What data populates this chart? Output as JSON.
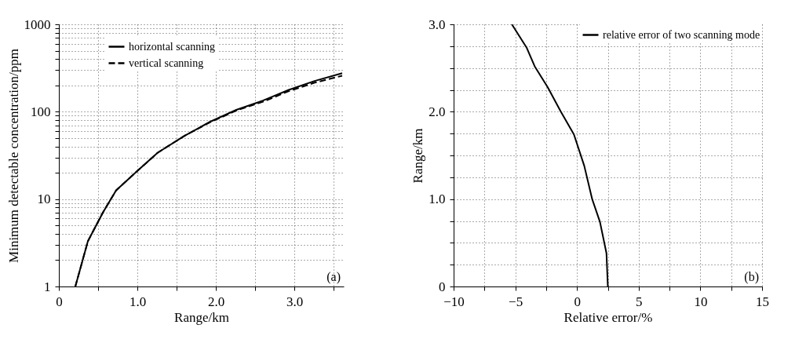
{
  "chart_data": [
    {
      "type": "line",
      "xlabel": "Range/km",
      "ylabel": "Minimum detectable concentration/ppm",
      "log": "y",
      "grid": true,
      "legend": "top left",
      "annotations": [
        "(a)"
      ],
      "xlim": [
        0,
        3.63
      ],
      "xticks": [
        0,
        {
          "value": 0.5,
          "label": null
        },
        {
          "value": 1,
          "label": "1.0"
        },
        {
          "value": 1.5,
          "label": null
        },
        {
          "value": 2,
          "label": "2.0"
        },
        {
          "value": 2.5,
          "label": null
        },
        {
          "value": 3,
          "label": "3.0"
        },
        {
          "value": 3.5,
          "label": null
        }
      ],
      "ylim": [
        1,
        1000
      ],
      "yticks": [
        1,
        {
          "value": 2,
          "label": null
        },
        {
          "value": 3,
          "label": null
        },
        {
          "value": 4,
          "label": null
        },
        {
          "value": 5,
          "label": null
        },
        {
          "value": 6,
          "label": null
        },
        {
          "value": 7,
          "label": null
        },
        {
          "value": 8,
          "label": null
        },
        {
          "value": 9,
          "label": null
        },
        10,
        {
          "value": 20,
          "label": null
        },
        {
          "value": 30,
          "label": null
        },
        {
          "value": 40,
          "label": null
        },
        {
          "value": 50,
          "label": null
        },
        {
          "value": 60,
          "label": null
        },
        {
          "value": 70,
          "label": null
        },
        {
          "value": 80,
          "label": null
        },
        {
          "value": 90,
          "label": null
        },
        100,
        {
          "value": 200,
          "label": null
        },
        {
          "value": 300,
          "label": null
        },
        {
          "value": 400,
          "label": null
        },
        {
          "value": 500,
          "label": null
        },
        {
          "value": 600,
          "label": null
        },
        {
          "value": 700,
          "label": null
        },
        {
          "value": 800,
          "label": null
        },
        {
          "value": 900,
          "label": null
        },
        1000
      ],
      "series": [
        {
          "name": "horizontal scanning",
          "color": "#000000",
          "line_style": "solid",
          "x": [
            0.21,
            0.37,
            0.56,
            0.73,
            1.0,
            1.26,
            1.6,
            1.93,
            2.26,
            2.6,
            2.93,
            3.26,
            3.61
          ],
          "values": [
            1,
            3.3,
            7,
            12.6,
            21,
            34,
            53,
            77,
            105,
            134,
            178,
            225,
            276
          ]
        },
        {
          "name": "vertical scanning",
          "color": "#000000",
          "line_style": "dashed",
          "x": [
            0.21,
            0.37,
            0.56,
            0.73,
            1.0,
            1.26,
            1.6,
            1.93,
            2.26,
            2.6,
            2.93,
            3.26,
            3.61
          ],
          "values": [
            1,
            3.3,
            7,
            12.6,
            21,
            34,
            53,
            76,
            103,
            130,
            172,
            215,
            258
          ]
        }
      ]
    },
    {
      "type": "line",
      "xlabel": "Relative error/%",
      "ylabel": "Range/km",
      "grid": true,
      "legend": "top right",
      "annotations": [
        "(b)"
      ],
      "xlim": [
        -10,
        15
      ],
      "xticks": [
        {
          "value": -10,
          "label": "−10"
        },
        {
          "value": -7.5,
          "label": null
        },
        {
          "value": -5,
          "label": "−5"
        },
        {
          "value": -2.5,
          "label": null
        },
        0,
        {
          "value": 2.5,
          "label": null
        },
        5,
        {
          "value": 7.5,
          "label": null
        },
        10,
        {
          "value": 12.5,
          "label": null
        },
        15
      ],
      "ylim": [
        0,
        3
      ],
      "yticks": [
        0,
        {
          "value": 0.25,
          "label": null
        },
        {
          "value": 0.5,
          "label": null
        },
        {
          "value": 0.75,
          "label": null
        },
        {
          "value": 1,
          "label": "1.0"
        },
        {
          "value": 1.25,
          "label": null
        },
        {
          "value": 1.5,
          "label": null
        },
        {
          "value": 1.75,
          "label": null
        },
        {
          "value": 2,
          "label": "2.0"
        },
        {
          "value": 2.25,
          "label": null
        },
        {
          "value": 2.5,
          "label": null
        },
        {
          "value": 2.75,
          "label": null
        },
        {
          "value": 3,
          "label": "3.0"
        }
      ],
      "series": [
        {
          "name": "relative error of two scanning mode",
          "color": "#000000",
          "line_style": "solid",
          "x": [
            2.5,
            2.39,
            1.86,
            1.23,
            0.59,
            -0.25,
            -1.31,
            -2.37,
            -3.43,
            -4.07,
            -5.28
          ],
          "values": [
            0,
            0.38,
            0.74,
            1.0,
            1.38,
            1.74,
            2.0,
            2.28,
            2.52,
            2.73,
            3.0
          ]
        }
      ]
    }
  ]
}
